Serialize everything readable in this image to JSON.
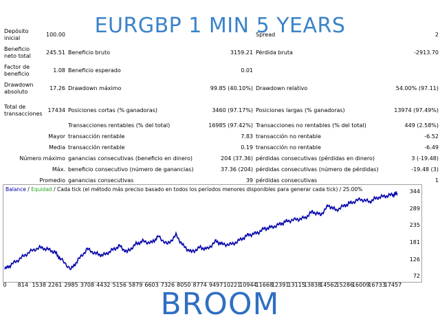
{
  "header_title": "EURGBP 1 MIN 5 YEARS",
  "stats": {
    "deposito_label": "Depósito inicial",
    "deposito_value": "100.00",
    "spread_label": "Spread",
    "spread_value": "2",
    "beneficio_neto_label": "Beneficio neto total",
    "beneficio_neto_value": "245.51",
    "beneficio_bruto_label": "Beneficio bruto",
    "beneficio_bruto_value": "3159.21",
    "perdida_bruta_label": "Pérdida bruta",
    "perdida_bruta_value": "-2913.70",
    "factor_label": "Factor de beneficio",
    "factor_value": "1.08",
    "beneficio_esperado_label": "Beneficio esperado",
    "beneficio_esperado_value": "0.01",
    "drawdown_abs_label": "Drawdown absoluto",
    "drawdown_abs_value": "17.26",
    "drawdown_max_label": "Drawdown máximo",
    "drawdown_max_value": "99.85 (40.10%)",
    "drawdown_rel_label": "Drawdown relativo",
    "drawdown_rel_value": "54.00% (97.11)",
    "total_trans_label": "Total de transacciones",
    "total_trans_value": "17434",
    "cortas_label": "Posiciones cortas (% ganadoras)",
    "cortas_value": "3460 (97.17%)",
    "largas_label": "Posiciones largas (% ganadoras)",
    "largas_value": "13974 (97.49%)",
    "rentables_label": "Transacciones rentables (% del total)",
    "rentables_value": "16985 (97.42%)",
    "no_rentables_label": "Transacciones no rentables (% del total)",
    "no_rentables_value": "449 (2.58%)",
    "mayor_label": "Mayor",
    "mayor_rent_label": "transacción rentable",
    "mayor_rent_value": "7.83",
    "mayor_norent_label": "transacción no rentable",
    "mayor_norent_value": "-6.52",
    "media_label": "Media",
    "media_rent_label": "transacción rentable",
    "media_rent_value": "0.19",
    "media_norent_label": "transacción no rentable",
    "media_norent_value": "-6.49",
    "nummax_label": "Número máximo",
    "nummax_gan_label": "ganancias consecutivas (beneficio en dinero)",
    "nummax_gan_value": "204 (37.36)",
    "nummax_per_label": "pérdidas consecutivas (pérdidas en dinero)",
    "nummax_per_value": "3 (-19.48)",
    "max_label": "Máx.",
    "max_ben_label": "beneficio consecutivo (número de ganancias)",
    "max_ben_value": "37.36 (204)",
    "max_per_label": "pérdidas consecutivas (número de pérdidas)",
    "max_per_value": "-19.48 (3)",
    "promedio_label": "Promedio",
    "promedio_gan_label": "ganancias consecutivas",
    "promedio_gan_value": "39",
    "promedio_per_label": "pérdidas consecutivas",
    "promedio_per_value": "1"
  },
  "legend": {
    "balance": "Balance",
    "sep": " / ",
    "equity": "Equidad",
    "rest": " / Cada tick (el método más preciso basado en todos los períodos menores disponibles para generar cada tick) / 25.00%"
  },
  "footer_title": "BROOM",
  "colors": {
    "title": "#3a83c9",
    "balance_line": "#0000aa",
    "equity_line": "#22aa22",
    "footer": "#2f6fc2"
  },
  "chart_data": {
    "type": "line",
    "x_ticks": [
      "0",
      "814",
      "1538",
      "2261",
      "2985",
      "3708",
      "4432",
      "5156",
      "5879",
      "6603",
      "7326",
      "8050",
      "8774",
      "9497",
      "10221",
      "10944",
      "11668",
      "12391",
      "13115",
      "13838",
      "14562",
      "15286",
      "16009",
      "16733",
      "17457"
    ],
    "y_ticks": [
      "344",
      "289",
      "235",
      "181",
      "126",
      "72"
    ],
    "ylim": [
      72,
      344
    ],
    "xlim": [
      0,
      17750
    ],
    "series": [
      {
        "name": "Balance",
        "x": [
          0,
          300,
          700,
          1100,
          1538,
          1900,
          2261,
          2500,
          2985,
          3300,
          3708,
          4100,
          4432,
          4800,
          5156,
          5500,
          5879,
          6200,
          6603,
          6900,
          7326,
          7700,
          8050,
          8400,
          8774,
          9100,
          9497,
          9800,
          10221,
          10600,
          10944,
          11300,
          11668,
          12000,
          12391,
          12700,
          13115,
          13500,
          13838,
          14200,
          14562,
          14900,
          15286,
          15600,
          16009,
          16400,
          16733,
          17100,
          17457,
          17650
        ],
        "y": [
          95,
          110,
          130,
          150,
          165,
          160,
          150,
          128,
          95,
          125,
          160,
          145,
          140,
          155,
          170,
          150,
          175,
          185,
          180,
          200,
          175,
          205,
          168,
          150,
          165,
          160,
          185,
          175,
          175,
          190,
          205,
          210,
          225,
          230,
          240,
          250,
          255,
          260,
          280,
          270,
          300,
          285,
          300,
          310,
          320,
          312,
          325,
          330,
          335,
          340
        ]
      }
    ]
  }
}
